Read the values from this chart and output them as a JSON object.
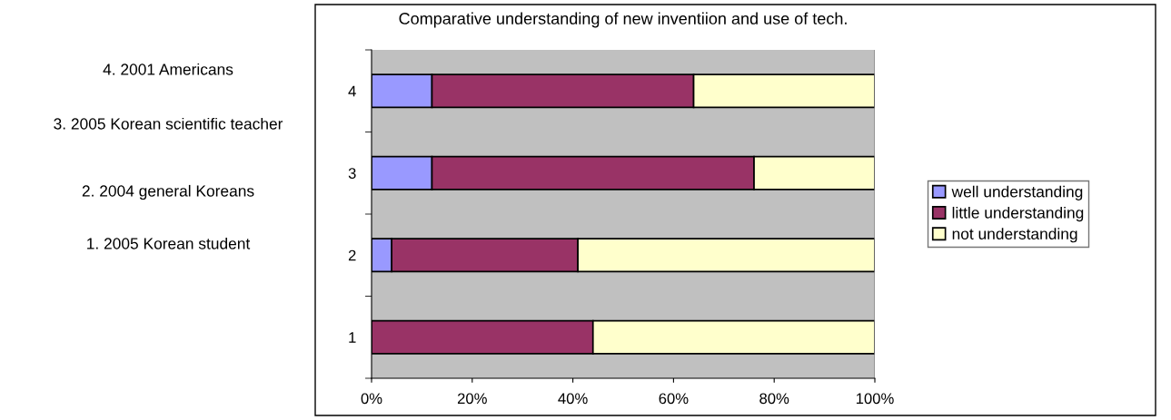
{
  "chart_data": {
    "type": "bar",
    "orientation": "horizontal",
    "stacked": true,
    "title": "Comparative understanding of new inventiion and use of tech.",
    "categories": [
      "4",
      "3",
      "2",
      "1"
    ],
    "series": [
      {
        "name": "well understanding",
        "color": "#9999ff",
        "values": [
          12,
          12,
          4,
          0
        ]
      },
      {
        "name": "little understanding",
        "color": "#993366",
        "values": [
          52,
          64,
          37,
          44
        ]
      },
      {
        "name": "not understanding",
        "color": "#ffffcc",
        "values": [
          36,
          24,
          59,
          56
        ]
      }
    ],
    "xlim": [
      0,
      100
    ],
    "xticks": [
      {
        "value": 0,
        "label": "0%"
      },
      {
        "value": 20,
        "label": "20%"
      },
      {
        "value": 40,
        "label": "40%"
      },
      {
        "value": 60,
        "label": "60%"
      },
      {
        "value": 80,
        "label": "80%"
      },
      {
        "value": 100,
        "label": "100%"
      }
    ],
    "grid": false,
    "legend": "right",
    "annotations": [
      "4. 2001 Americans",
      "3. 2005 Korean scientific teacher",
      "2. 2004 general Koreans",
      "1. 2005 Korean student"
    ]
  }
}
